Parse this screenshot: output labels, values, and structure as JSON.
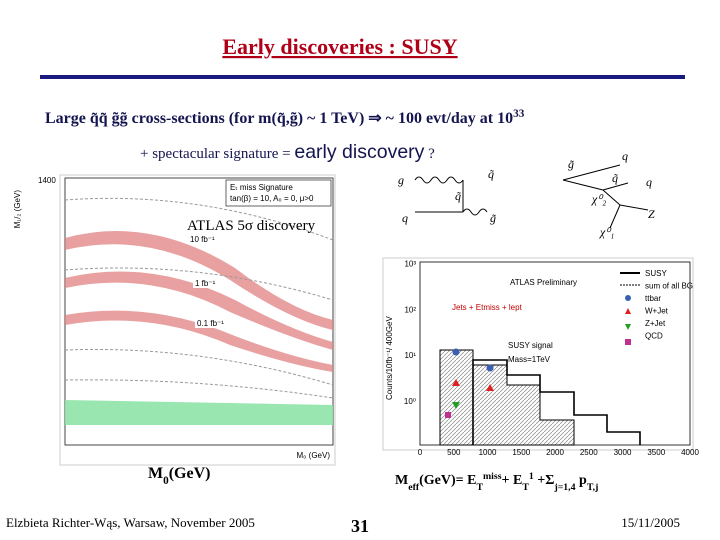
{
  "title": "Early discoveries : SUSY",
  "line1": [
    {
      "t": "Large q̃q̃ g̃g̃  cross-sections  (for m(q̃,g̃) ~ 1 TeV) ⇒ ~ 100 evt/day at 10"
    },
    {
      "t": "33",
      "s": "sup"
    }
  ],
  "line2": [
    {
      "t": "+ spectacular signature = "
    },
    {
      "t": "early discovery",
      "s": "big"
    },
    {
      "t": " ?"
    }
  ],
  "diagram": {
    "labels": [
      "g",
      "q̃",
      "q",
      "g̃",
      "q̃",
      "g̃",
      "q",
      "χ⁰₂",
      "q",
      "Z",
      "χ⁰₁",
      "q̃"
    ]
  },
  "left_plot": {
    "label": "ATLAS 5σ discovery",
    "curves": [
      "10 fb⁻¹",
      "1 fb⁻¹",
      "0.1 fb⁻¹"
    ],
    "legend": "Eₜ miss Signature",
    "params": "tan(β) = 10, A₀ = 0, μ>0",
    "y_axis": "M₁/₂ (GeV)",
    "x_axis": "M₀ (GeV)",
    "ytick": "1400"
  },
  "right_plot": {
    "label": "Jets + Etmiss + lept",
    "title": "ATLAS Preliminary",
    "signal": "SUSY signal",
    "mass": "Mass=1TeV",
    "y_axis": "Counts/10fb⁻¹/ 400GeV",
    "legend": [
      "SUSY",
      "sum of all BG",
      "ttbar",
      "W+Jet",
      "Z+Jet",
      "QCD"
    ],
    "xticks": [
      "0",
      "500",
      "1000",
      "1500",
      "2000",
      "2500",
      "3000",
      "3500",
      "4000"
    ],
    "yticks": [
      "10⁰",
      "10¹",
      "10²",
      "10³"
    ]
  },
  "label_left": [
    {
      "t": "M"
    },
    {
      "t": "0",
      "s": "sub"
    },
    {
      "t": "(GeV)"
    }
  ],
  "label_right": [
    {
      "t": "M"
    },
    {
      "t": "eff",
      "s": "sub"
    },
    {
      "t": "(GeV)= E"
    },
    {
      "t": "T",
      "s": "sub"
    },
    {
      "t": "miss",
      "s": "sup"
    },
    {
      "t": "+ E"
    },
    {
      "t": "T",
      "s": "sub"
    },
    {
      "t": "1",
      "s": "sup"
    },
    {
      "t": " +Σ"
    },
    {
      "t": "j=1,4",
      "s": "sub"
    },
    {
      "t": " p"
    },
    {
      "t": "T,j",
      "s": "sub"
    }
  ],
  "footer": {
    "author": "Elzbieta Richter-Wąs, Warsaw, November 2005",
    "page": "31",
    "date": "15/11/2005"
  }
}
